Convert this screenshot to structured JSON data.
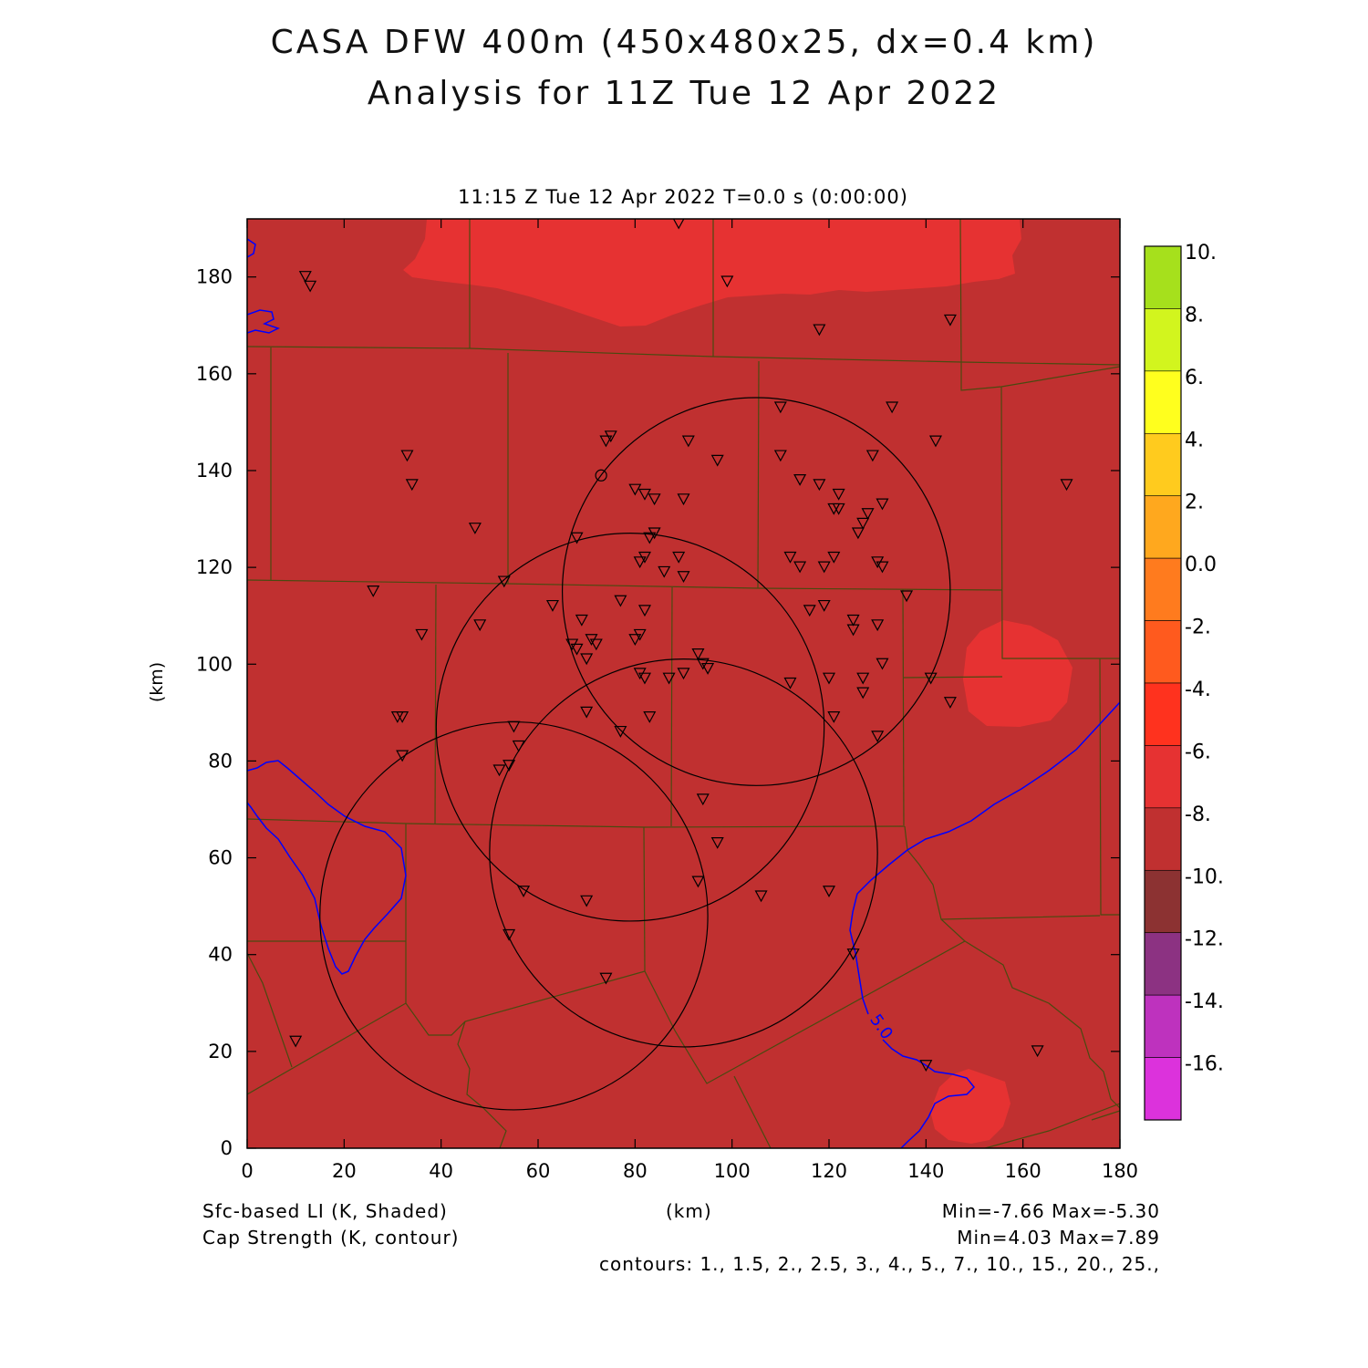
{
  "title_line1": "CASA DFW 400m (450x480x25, dx=0.4 km)",
  "title_line2": "Analysis for 11Z Tue 12 Apr 2022",
  "subtitle": "11:15 Z Tue 12 Apr 2022   T=0.0 s (0:00:00)",
  "axes": {
    "xlabel": "(km)",
    "ylabel": "(km)",
    "xlim": [
      0,
      180
    ],
    "ylim": [
      0,
      192
    ],
    "xticks": [
      0,
      20,
      40,
      60,
      80,
      100,
      120,
      140,
      160,
      180
    ],
    "yticks": [
      0,
      20,
      40,
      60,
      80,
      100,
      120,
      140,
      160,
      180
    ]
  },
  "colorbar": {
    "labels": [
      "10.",
      "8.",
      "6.",
      "4.",
      "2.",
      "0.0",
      "-2.",
      "-4.",
      "-6.",
      "-8.",
      "-10.",
      "-12.",
      "-14.",
      "-16."
    ],
    "colors": [
      "#a6e01c",
      "#d2f51e",
      "#ffff1e",
      "#ffcb1e",
      "#ffa81e",
      "#ff7b1e",
      "#ff5a1e",
      "#ff321e",
      "#e63232",
      "#c03030",
      "#8c3232",
      "#8c3282",
      "#be32be",
      "#dc32dc"
    ]
  },
  "legend": {
    "line1_left": "Sfc-based LI (K, Shaded)",
    "line2_left": "Cap Strength (K, contour)",
    "center": "(km)",
    "line1_right": "Min=-7.66 Max=-5.30",
    "line2_right": "Min=4.03 Max=7.89",
    "line3_right": "contours: 1., 1.5, 2., 2.5, 3., 4., 5., 7., 10., 15., 20., 25.,"
  },
  "contour_label": "5.0",
  "colors": {
    "background_field": "#c03030",
    "warm_patch": "#e63232",
    "county_lines": "#4a4a10",
    "contour": "#0000ff",
    "radar_rings": "#000000"
  },
  "radar_rings": [
    {
      "cx": 105,
      "cy": 115,
      "r": 40
    },
    {
      "cx": 79,
      "cy": 87,
      "r": 40
    },
    {
      "cx": 90,
      "cy": 61,
      "r": 40
    },
    {
      "cx": 55,
      "cy": 48,
      "r": 40
    }
  ],
  "stations": [
    [
      12,
      180
    ],
    [
      13,
      178
    ],
    [
      89,
      191
    ],
    [
      99,
      179
    ],
    [
      118,
      169
    ],
    [
      145,
      171
    ],
    [
      110,
      153
    ],
    [
      133,
      153
    ],
    [
      74,
      146
    ],
    [
      75,
      147
    ],
    [
      91,
      146
    ],
    [
      97,
      142
    ],
    [
      33,
      143
    ],
    [
      34,
      137
    ],
    [
      110,
      143
    ],
    [
      129,
      143
    ],
    [
      142,
      146
    ],
    [
      114,
      138
    ],
    [
      118,
      137
    ],
    [
      122,
      135
    ],
    [
      128,
      131
    ],
    [
      131,
      133
    ],
    [
      126,
      127
    ],
    [
      121,
      132
    ],
    [
      122,
      132
    ],
    [
      127,
      129
    ],
    [
      169,
      137
    ],
    [
      84,
      134
    ],
    [
      80,
      136
    ],
    [
      82,
      135
    ],
    [
      90,
      134
    ],
    [
      47,
      128
    ],
    [
      68,
      126
    ],
    [
      83,
      126
    ],
    [
      84,
      127
    ],
    [
      82,
      122
    ],
    [
      81,
      121
    ],
    [
      86,
      119
    ],
    [
      89,
      122
    ],
    [
      90,
      118
    ],
    [
      112,
      122
    ],
    [
      114,
      120
    ],
    [
      119,
      120
    ],
    [
      121,
      122
    ],
    [
      130,
      121
    ],
    [
      131,
      120
    ],
    [
      53,
      117
    ],
    [
      26,
      115
    ],
    [
      63,
      112
    ],
    [
      77,
      113
    ],
    [
      82,
      111
    ],
    [
      116,
      111
    ],
    [
      119,
      112
    ],
    [
      125,
      109
    ],
    [
      125,
      107
    ],
    [
      130,
      108
    ],
    [
      136,
      114
    ],
    [
      36,
      106
    ],
    [
      48,
      108
    ],
    [
      67,
      104
    ],
    [
      68,
      103
    ],
    [
      69,
      109
    ],
    [
      71,
      105
    ],
    [
      72,
      104
    ],
    [
      80,
      105
    ],
    [
      81,
      106
    ],
    [
      93,
      102
    ],
    [
      94,
      100
    ],
    [
      95,
      99
    ],
    [
      90,
      98
    ],
    [
      87,
      97
    ],
    [
      81,
      98
    ],
    [
      82,
      97
    ],
    [
      70,
      101
    ],
    [
      112,
      96
    ],
    [
      120,
      97
    ],
    [
      127,
      97
    ],
    [
      127,
      94
    ],
    [
      131,
      100
    ],
    [
      141,
      97
    ],
    [
      145,
      92
    ],
    [
      31,
      89
    ],
    [
      32,
      89
    ],
    [
      70,
      90
    ],
    [
      77,
      86
    ],
    [
      83,
      89
    ],
    [
      121,
      89
    ],
    [
      130,
      85
    ],
    [
      55,
      87
    ],
    [
      56,
      83
    ],
    [
      32,
      81
    ],
    [
      54,
      79
    ],
    [
      52,
      78
    ],
    [
      94,
      72
    ],
    [
      97,
      63
    ],
    [
      93,
      55
    ],
    [
      70,
      51
    ],
    [
      57,
      53
    ],
    [
      54,
      44
    ],
    [
      106,
      52
    ],
    [
      120,
      53
    ],
    [
      125,
      40
    ],
    [
      74,
      35
    ],
    [
      10,
      22
    ],
    [
      140,
      17
    ],
    [
      163,
      20
    ]
  ],
  "hollow_station": [
    73,
    139
  ]
}
